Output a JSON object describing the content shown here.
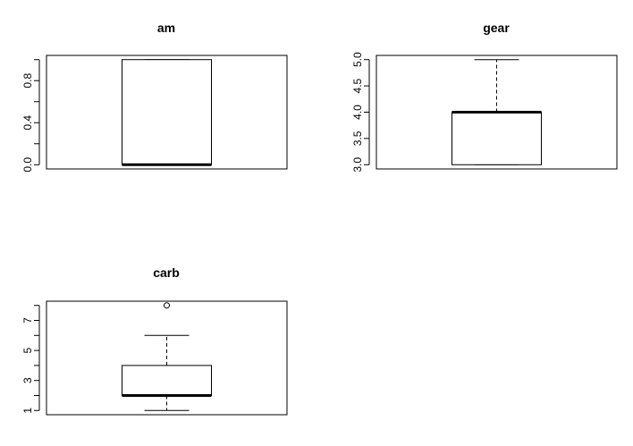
{
  "chart_data": [
    {
      "type": "boxplot",
      "title": "am",
      "ylim": [
        -0.04,
        1.04
      ],
      "yticks": [
        "0.0",
        "0.4",
        "0.8"
      ],
      "ytick_values": [
        0.0,
        0.4,
        0.8
      ],
      "minor_ticks": [
        0.2,
        0.6,
        1.0
      ],
      "whisker_low": 0,
      "q1": 0,
      "median": 0,
      "q3": 1,
      "whisker_high": 1,
      "outliers": []
    },
    {
      "type": "boxplot",
      "title": "gear",
      "ylim": [
        2.92,
        5.08
      ],
      "yticks": [
        "3.0",
        "3.5",
        "4.0",
        "4.5",
        "5.0"
      ],
      "ytick_values": [
        3.0,
        3.5,
        4.0,
        4.5,
        5.0
      ],
      "minor_ticks": [],
      "whisker_low": 3,
      "q1": 3,
      "median": 4,
      "q3": 4,
      "whisker_high": 5,
      "outliers": []
    },
    {
      "type": "boxplot",
      "title": "carb",
      "ylim": [
        0.72,
        8.28
      ],
      "yticks": [
        "1",
        "3",
        "5",
        "7"
      ],
      "ytick_values": [
        1,
        3,
        5,
        7
      ],
      "minor_ticks": [
        2,
        4,
        6,
        8
      ],
      "whisker_low": 1,
      "q1": 2,
      "median": 2,
      "q3": 4,
      "whisker_high": 6,
      "outliers": [
        8
      ]
    }
  ]
}
